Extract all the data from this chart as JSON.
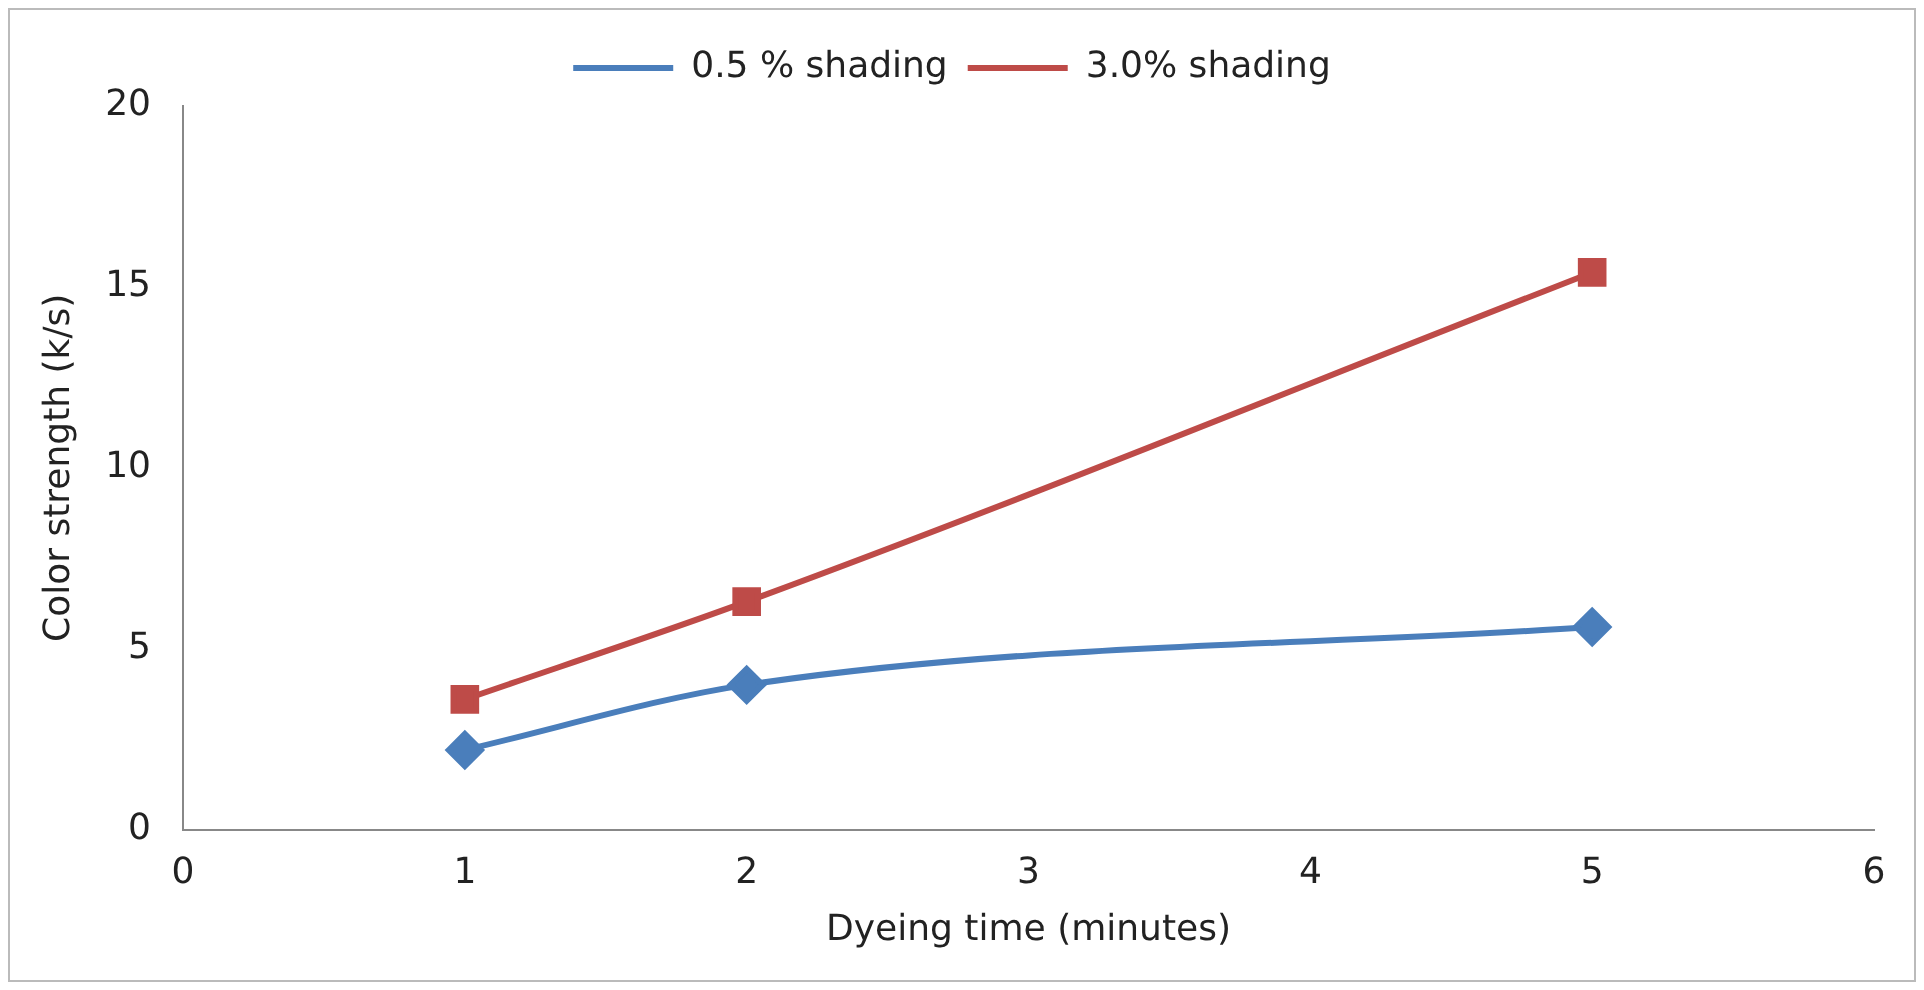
{
  "chart_data": {
    "type": "line",
    "xlabel": "Dyeing time (minutes)",
    "ylabel": "Color strength (k/s)",
    "x": [
      1,
      2,
      5
    ],
    "series": [
      {
        "name": "0.5 % shading",
        "color": "#4a7ebb",
        "values": [
          2.2,
          4.0,
          5.6
        ],
        "marker": "diamond"
      },
      {
        "name": "3.0% shading",
        "color": "#be4b48",
        "values": [
          3.6,
          6.3,
          15.4
        ],
        "marker": "square"
      }
    ],
    "xlim": [
      0,
      6
    ],
    "xticks": [
      0,
      1,
      2,
      3,
      4,
      5,
      6
    ],
    "ylim": [
      0,
      20
    ],
    "yticks": [
      0,
      5,
      10,
      15,
      20
    ],
    "grid": false,
    "legend": "top",
    "line_style": "solid"
  }
}
